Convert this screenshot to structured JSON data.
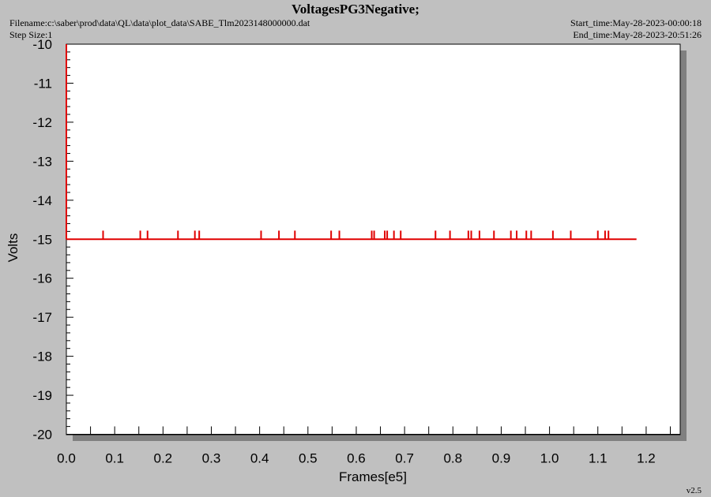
{
  "header": {
    "title": "VoltagesPG3Negative;",
    "filename": "Filename:c:\\saber\\prod\\data\\QL\\data\\plot_data\\SABE_Tlm2023148000000.dat",
    "step_size": "Step Size:1",
    "start_time": "Start_time:May-28-2023-00:00:18",
    "end_time": "End_time:May-28-2023-20:51:26"
  },
  "footer": {
    "version": "v2.5"
  },
  "colors": {
    "background": "#c0c0c0",
    "plot_area": "#ffffff",
    "series": "#e00000",
    "shadow": "#808080"
  },
  "chart_data": {
    "type": "line",
    "title": "VoltagesPG3Negative;",
    "xlabel": "Frames[e5]",
    "ylabel": "Volts",
    "xlim": [
      0.0,
      1.25
    ],
    "ylim": [
      -20,
      -10
    ],
    "x_ticks": [
      "0.0",
      "0.1",
      "0.2",
      "0.3",
      "0.4",
      "0.5",
      "0.6",
      "0.7",
      "0.8",
      "0.9",
      "1.0",
      "1.1",
      "1.2"
    ],
    "y_ticks": [
      "-10",
      "-11",
      "-12",
      "-13",
      "-14",
      "-15",
      "-16",
      "-17",
      "-18",
      "-19",
      "-20"
    ],
    "grid": false,
    "series": [
      {
        "baseline_value": -15.0,
        "x_start": 0.0,
        "x_end": 1.18,
        "spike_value": -14.78,
        "spike_x": [
          0.076,
          0.153,
          0.168,
          0.231,
          0.266,
          0.275,
          0.403,
          0.44,
          0.473,
          0.548,
          0.565,
          0.632,
          0.637,
          0.659,
          0.664,
          0.678,
          0.692,
          0.764,
          0.794,
          0.832,
          0.838,
          0.855,
          0.885,
          0.92,
          0.932,
          0.952,
          0.962,
          1.007,
          1.044,
          1.1,
          1.115,
          1.122
        ],
        "initial_value": -10.0
      }
    ]
  }
}
